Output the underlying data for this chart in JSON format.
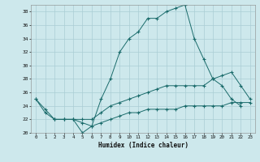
{
  "xlabel": "Humidex (Indice chaleur)",
  "xlim": [
    -0.5,
    23.5
  ],
  "ylim": [
    20,
    39
  ],
  "xticks": [
    0,
    1,
    2,
    3,
    4,
    5,
    6,
    7,
    8,
    9,
    10,
    11,
    12,
    13,
    14,
    15,
    16,
    17,
    18,
    19,
    20,
    21,
    22,
    23
  ],
  "yticks": [
    20,
    22,
    24,
    26,
    28,
    30,
    32,
    34,
    36,
    38
  ],
  "bg_color": "#cde8ec",
  "line_color": "#1a6b6b",
  "grid_color": "#aacdd4",
  "line1_x": [
    0,
    1,
    2,
    3,
    4,
    5,
    6,
    7,
    8,
    9,
    10,
    11,
    12,
    13,
    14,
    15,
    16,
    17,
    18,
    19,
    20,
    21,
    22
  ],
  "line1_y": [
    25,
    23,
    22,
    22,
    22,
    20,
    21,
    25,
    28,
    32,
    34,
    35,
    37,
    37,
    38,
    38.5,
    39,
    34,
    31,
    28,
    27,
    25,
    24
  ],
  "line2_x": [
    2,
    3,
    4,
    5,
    6,
    7,
    8,
    9,
    10,
    11,
    12,
    13,
    14,
    15,
    16,
    17,
    18,
    19,
    20,
    21,
    22,
    23
  ],
  "line2_y": [
    22,
    22,
    22,
    22,
    22,
    23,
    24,
    24.5,
    25,
    25.5,
    26,
    26.5,
    27,
    27,
    27,
    27,
    27,
    28,
    28.5,
    29,
    27,
    25
  ],
  "line3_x": [
    0,
    1,
    2,
    3,
    4,
    5,
    6,
    7,
    8,
    9,
    10,
    11,
    12,
    13,
    14,
    15,
    16,
    17,
    18,
    19,
    20,
    21,
    22,
    23
  ],
  "line3_y": [
    25,
    23.5,
    22,
    22,
    22,
    21.5,
    21,
    21.5,
    22,
    22.5,
    23,
    23,
    23.5,
    23.5,
    23.5,
    23.5,
    24,
    24,
    24,
    24,
    24,
    24.5,
    24.5,
    24.5
  ]
}
